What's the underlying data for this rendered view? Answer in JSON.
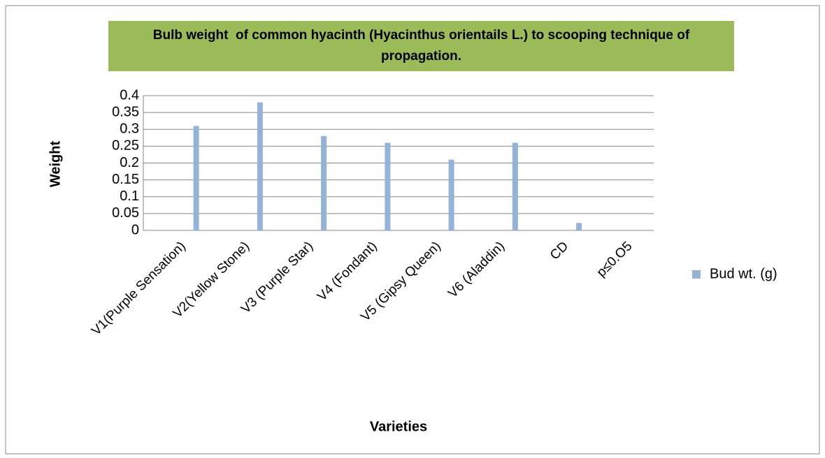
{
  "chart_data": {
    "type": "bar",
    "title": "Bulb weight  of common hyacinth (Hyacinthus orientails L.) to scooping technique of propagation.",
    "x_label": "Varieties",
    "y_label": "Weight",
    "categories": [
      "V1(Purple Sensation)",
      "V2(Yellow Stone)",
      "V3 (Purple Star)",
      "V4 (Fondant)",
      "V5 (Gipsy Queen)",
      "V6 (Aladdin)",
      "CD",
      "p≤0.O5"
    ],
    "series": [
      {
        "name": "Bud wt. (g)",
        "color": "#95b3d7",
        "values": [
          0.31,
          0.38,
          0.28,
          0.26,
          0.21,
          0.26,
          0.022,
          null
        ]
      }
    ],
    "ylim": [
      0,
      0.4
    ],
    "yticks": [
      0,
      0.05,
      0.1,
      0.15,
      0.2,
      0.25,
      0.3,
      0.35,
      0.4
    ],
    "grid": true,
    "legend": "right"
  }
}
